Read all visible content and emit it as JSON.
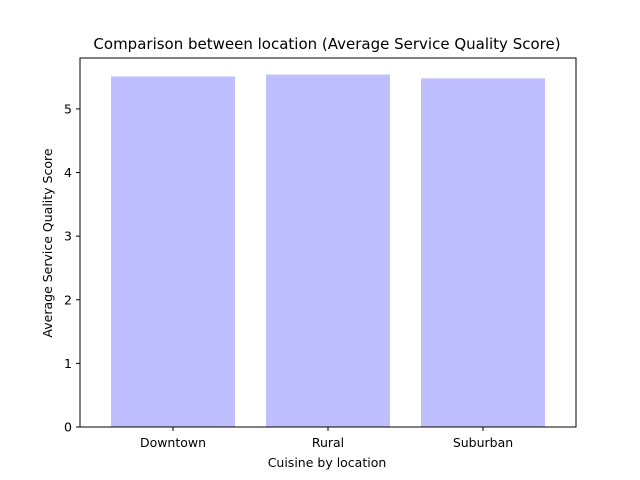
{
  "chart_data": {
    "type": "bar",
    "title": "Comparison between location (Average Service Quality Score)",
    "xlabel": "Cuisine by location",
    "ylabel": "Average Service Quality Score",
    "categories": [
      "Downtown",
      "Rural",
      "Suburban"
    ],
    "values": [
      5.51,
      5.54,
      5.48
    ],
    "ylim": [
      0,
      5.8
    ],
    "yticks": [
      0,
      1,
      2,
      3,
      4,
      5
    ],
    "grid": false,
    "colors": {
      "bar": "#bfbfff",
      "axis": "#000000",
      "background": "#ffffff"
    }
  }
}
